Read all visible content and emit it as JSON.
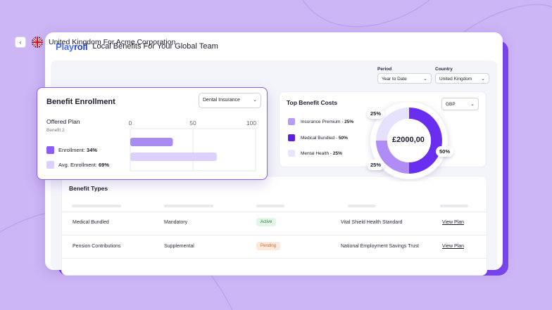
{
  "app": {
    "logo_part1": "Play",
    "logo_part2": "roll",
    "title": "Local Benefits For Your Global Team"
  },
  "header": {
    "back_icon": "chevron-left-icon",
    "back_glyph": "‹",
    "country_title": "United Kingdom For Acme Corporation",
    "period_label": "Period",
    "period_value": "Year to Date",
    "country_label": "Country",
    "country_value": "United Kingdom",
    "chevron": "⌄"
  },
  "enrollment": {
    "title": "Benefit Enrollment",
    "dropdown_value": "Dental Insurance",
    "plan_title": "Offered Plan",
    "plan_subtitle": "Benefit 2",
    "legend": [
      {
        "label": "Enrollment:",
        "value": "34%",
        "color": "#8b5cf6"
      },
      {
        "label": "Avg. Enrollment:",
        "value": "69%",
        "color": "#ddd0fb"
      }
    ]
  },
  "chart_data": {
    "type": "bar",
    "orientation": "horizontal",
    "categories": [
      "Enrollment",
      "Avg. Enrollment"
    ],
    "values": [
      34,
      69
    ],
    "colors": [
      "#a98cf0",
      "#ddd0fb"
    ],
    "xticks": [
      "0",
      "50",
      "100"
    ],
    "xlim": [
      0,
      100
    ],
    "grid": true
  },
  "costs": {
    "title": "Top Benefit Costs",
    "currency": "GBP",
    "legend": [
      {
        "label": "Insurance Premium -",
        "value": "25%",
        "color": "#b59bf3"
      },
      {
        "label": "Medical Bundled -",
        "value": "50%",
        "color": "#5b1fe0"
      },
      {
        "label": "Mental Health -",
        "value": "25%",
        "color": "#eae5fb"
      }
    ],
    "donut": {
      "center_value": "£2000,00",
      "segments": [
        {
          "name": "Medical Bundled",
          "value": 50,
          "color": "#6a2ef0"
        },
        {
          "name": "Insurance Premium",
          "value": 25,
          "color": "#b08cf5"
        },
        {
          "name": "Mental Health",
          "value": 25,
          "color": "#e7e2fb"
        }
      ],
      "badges": [
        "25%",
        "50%",
        "25%"
      ]
    }
  },
  "types": {
    "title": "Benefit Types",
    "rows": [
      {
        "name": "Medical Bundled",
        "kind": "Mandatory",
        "status": "Active",
        "provider": "Vital Shield Health Standard",
        "action": "View Plan"
      },
      {
        "name": "Pension Contributions",
        "kind": "Supplemental",
        "status": "Pending",
        "provider": "National Employment Savings Trust",
        "action": "View Plan"
      }
    ]
  }
}
